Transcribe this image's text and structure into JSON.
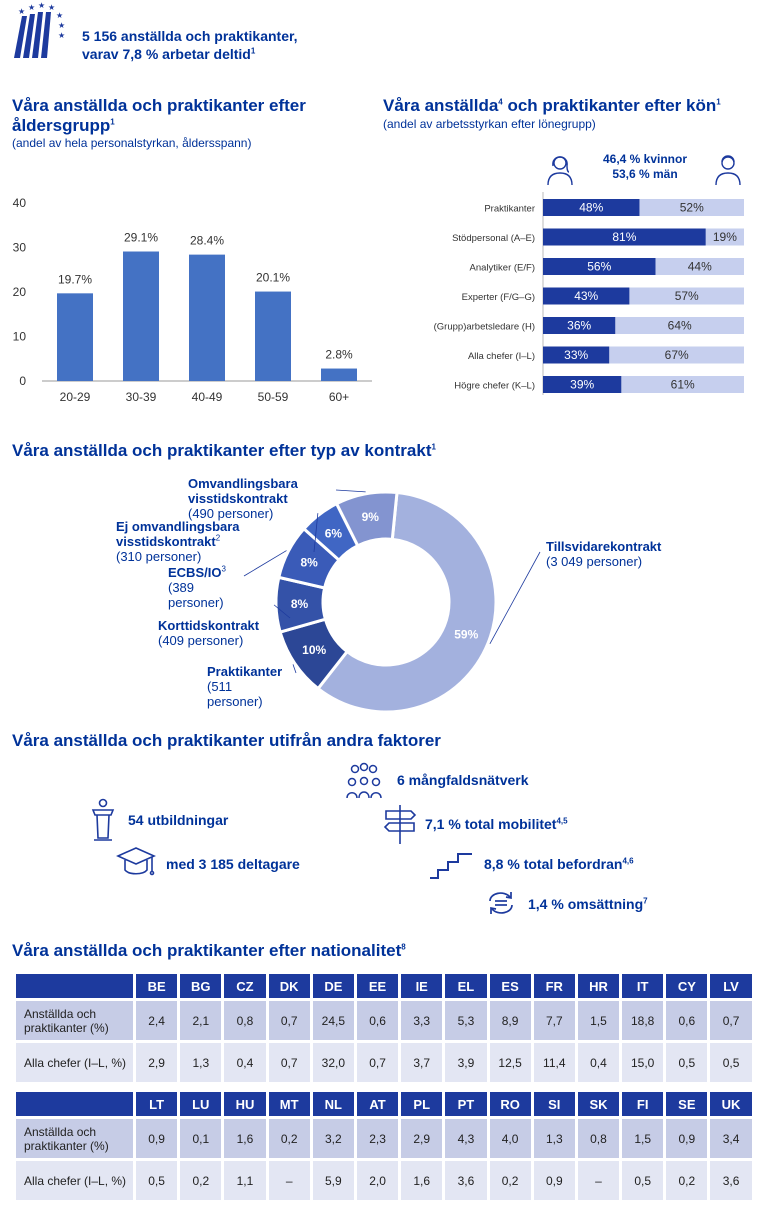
{
  "header": {
    "line1": "5 156 anställda och praktikanter,",
    "line2": "varav 7,8 % arbetar deltid",
    "line2_sup": "1"
  },
  "age": {
    "title": "Våra anställda och praktikanter efter",
    "title2": "åldersgrupp",
    "title_sup": "1",
    "subtitle": "(andel av hela personalstyrkan, åldersspann)"
  },
  "gender": {
    "title_pre": "Våra anställda",
    "title_sup1": "4",
    "title_post": " och praktikanter efter kön",
    "title_sup2": "1",
    "subtitle": "(andel av arbetsstyrkan efter lönegrupp)",
    "women_text": "46,4 % kvinnor",
    "men_text": "53,6 % män",
    "women_color": "#1d3a9e",
    "men_color": "#c6cfee"
  },
  "contract": {
    "title": "Våra anställda och praktikanter efter typ av kontrakt",
    "title_sup": "1",
    "labels": [
      {
        "name": "Omvandlingsbara",
        "name2": "visstidskontrakt",
        "detail": "(490 personer)"
      },
      {
        "name": "Ej omvandlingsbara",
        "name2": "visstidskontrakt",
        "sup": "2",
        "detail": "(310 personer)"
      },
      {
        "name": "ECBS/IO",
        "sup": "3",
        "detail": "(389",
        "detail2": "personer)"
      },
      {
        "name": "Korttidskontrakt",
        "detail": "(409 personer)"
      },
      {
        "name": "Praktikanter",
        "detail": "(511",
        "detail2": "personer)"
      },
      {
        "name": "Tillsvidarekontrakt",
        "detail": "(3 049 personer)"
      }
    ]
  },
  "factors": {
    "title": "Våra anställda och praktikanter utifrån andra faktorer",
    "training": "54 utbildningar",
    "participants": "med 3 185 deltagare",
    "networks": "6 mångfaldsnätverk",
    "mobility": "7,1 % total mobilitet",
    "mobility_sup": "4,5",
    "promotion": "8,8 % total befordran",
    "promotion_sup": "4,6",
    "turnover": "1,4 % omsättning",
    "turnover_sup": "7"
  },
  "nationality": {
    "title": "Våra anställda och praktikanter efter nationalitet",
    "title_sup": "8",
    "row_label_1": "Anställda och praktikanter (%)",
    "row_label_2": "Alla chefer (I–L, %)",
    "table1": {
      "countries": [
        "BE",
        "BG",
        "CZ",
        "DK",
        "DE",
        "EE",
        "IE",
        "EL",
        "ES",
        "FR",
        "HR",
        "IT",
        "CY",
        "LV"
      ],
      "staff": [
        "2,4",
        "2,1",
        "0,8",
        "0,7",
        "24,5",
        "0,6",
        "3,3",
        "5,3",
        "8,9",
        "7,7",
        "1,5",
        "18,8",
        "0,6",
        "0,7"
      ],
      "managers": [
        "2,9",
        "1,3",
        "0,4",
        "0,7",
        "32,0",
        "0,7",
        "3,7",
        "3,9",
        "12,5",
        "11,4",
        "0,4",
        "15,0",
        "0,5",
        "0,5"
      ]
    },
    "table2": {
      "countries": [
        "LT",
        "LU",
        "HU",
        "MT",
        "NL",
        "AT",
        "PL",
        "PT",
        "RO",
        "SI",
        "SK",
        "FI",
        "SE",
        "UK"
      ],
      "staff": [
        "0,9",
        "0,1",
        "1,6",
        "0,2",
        "3,2",
        "2,3",
        "2,9",
        "4,3",
        "4,0",
        "1,3",
        "0,8",
        "1,5",
        "0,9",
        "3,4"
      ],
      "managers": [
        "0,5",
        "0,2",
        "1,1",
        "–",
        "5,9",
        "2,0",
        "1,6",
        "3,6",
        "0,2",
        "0,9",
        "–",
        "0,5",
        "0,2",
        "3,6"
      ]
    }
  },
  "chart_data": [
    {
      "type": "bar",
      "categories": [
        "20-29",
        "30-39",
        "40-49",
        "50-59",
        "60+"
      ],
      "values": [
        19.7,
        29.1,
        28.4,
        20.1,
        2.8
      ],
      "value_labels": [
        "19.7%",
        "29.1%",
        "28.4%",
        "20.1%",
        "2.8%"
      ],
      "yticks": [
        "0",
        "10",
        "20",
        "30",
        "40"
      ],
      "ylim": [
        0,
        40
      ],
      "color": "#4472c4"
    },
    {
      "type": "bar",
      "orientation": "horizontal-stacked",
      "categories": [
        "Praktikanter",
        "Stödpersonal (A–E)",
        "Analytiker (E/F)",
        "Experter (F/G–G)",
        "(Grupp)arbetsledare (H)",
        "Alla chefer (I–L)",
        "Högre chefer (K–L)"
      ],
      "series": [
        {
          "values": [
            48,
            81,
            56,
            43,
            36,
            33,
            39
          ],
          "labels": [
            "48%",
            "81%",
            "56%",
            "43%",
            "36%",
            "33%",
            "39%"
          ]
        },
        {
          "values": [
            52,
            19,
            44,
            57,
            64,
            67,
            61
          ],
          "labels": [
            "52%",
            "19%",
            "44%",
            "57%",
            "64%",
            "67%",
            "61%"
          ]
        }
      ]
    },
    {
      "type": "pie",
      "style": "donut",
      "values": [
        59,
        10,
        8,
        8,
        6,
        9
      ],
      "value_labels": [
        "59%",
        "10%",
        "8%",
        "8%",
        "6%",
        "9%"
      ],
      "colors": [
        "#a3b1de",
        "#2c4796",
        "#3452a8",
        "#3a5bb8",
        "#4066c4",
        "#8394d0"
      ]
    }
  ]
}
